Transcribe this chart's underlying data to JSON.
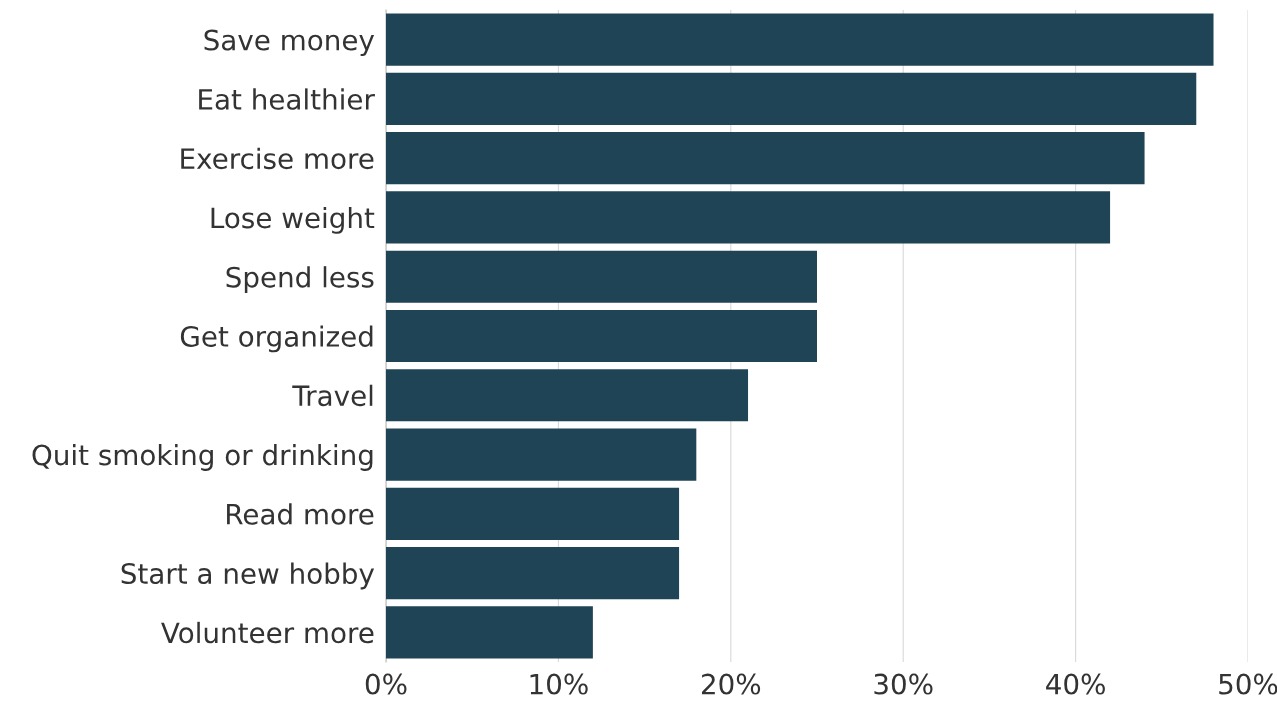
{
  "chart_data": {
    "type": "bar",
    "orientation": "horizontal",
    "categories": [
      "Save money",
      "Eat healthier",
      "Exercise more",
      "Lose weight",
      "Spend less",
      "Get organized",
      "Travel",
      "Quit smoking or drinking",
      "Read more",
      "Start a new hobby",
      "Volunteer more"
    ],
    "values": [
      48,
      47,
      44,
      42,
      25,
      25,
      21,
      18,
      17,
      17,
      12
    ],
    "color": "#1e4455",
    "xlim": [
      0,
      50
    ],
    "xticks": [
      {
        "value": 0,
        "label": "0%"
      },
      {
        "value": 10,
        "label": "10%"
      },
      {
        "value": 20,
        "label": "20%"
      },
      {
        "value": 30,
        "label": "30%"
      },
      {
        "value": 40,
        "label": "40%"
      },
      {
        "value": 50,
        "label": "50%"
      }
    ],
    "grid": "x",
    "legend": false
  }
}
